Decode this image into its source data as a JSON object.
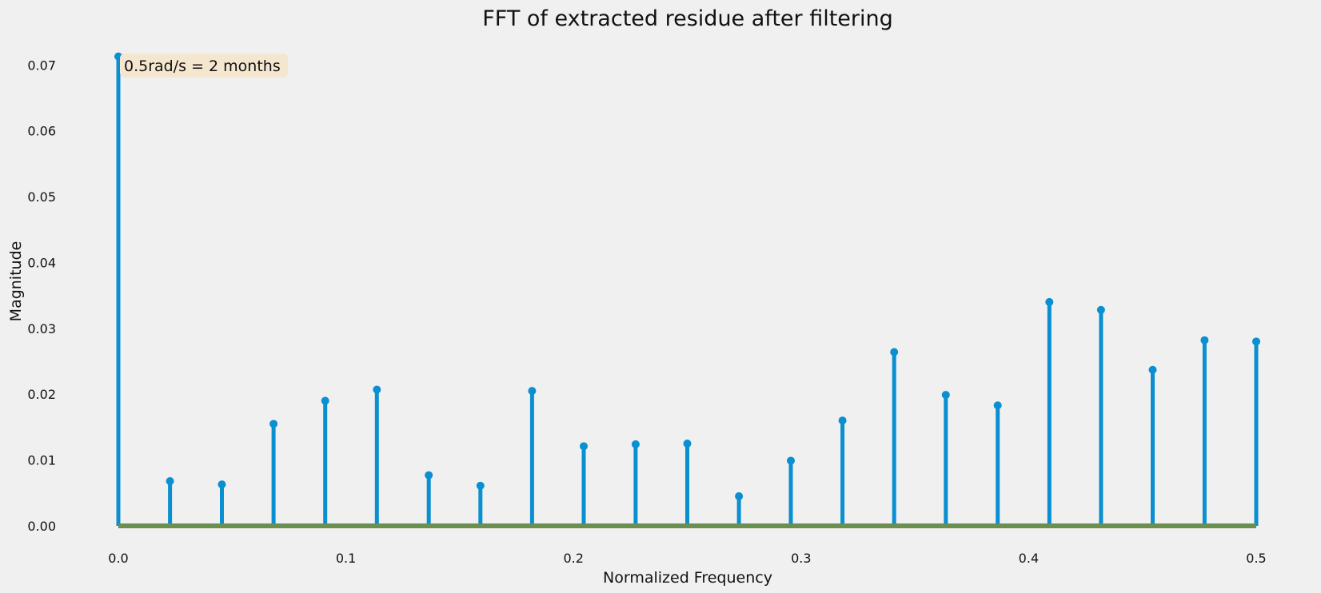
{
  "chart_data": {
    "type": "stem",
    "title": "FFT of extracted residue after filtering",
    "xlabel": "Normalized Frequency",
    "ylabel": "Magnitude",
    "xlim": [
      0.0,
      0.5
    ],
    "ylim": [
      0.0,
      0.0715
    ],
    "x_ticks": [
      "0.0",
      "0.1",
      "0.2",
      "0.3",
      "0.4",
      "0.5"
    ],
    "y_ticks": [
      "0.00",
      "0.01",
      "0.02",
      "0.03",
      "0.04",
      "0.05",
      "0.06",
      "0.07"
    ],
    "grid": false,
    "annotation": "0.5rad/s = 2 months",
    "colors": {
      "stem": "#0a8fd0",
      "baseline": "#6b8f4e",
      "annotation_box": "#f5e6cf"
    },
    "x": [
      0.0,
      0.0227,
      0.0455,
      0.0682,
      0.0909,
      0.1136,
      0.1364,
      0.1591,
      0.1818,
      0.2045,
      0.2273,
      0.25,
      0.2727,
      0.2955,
      0.3182,
      0.3409,
      0.3636,
      0.3864,
      0.4091,
      0.4318,
      0.4545,
      0.4773,
      0.5
    ],
    "values": [
      0.0713,
      0.0068,
      0.0063,
      0.0155,
      0.019,
      0.0207,
      0.0077,
      0.0061,
      0.0205,
      0.0121,
      0.0124,
      0.0125,
      0.0045,
      0.0099,
      0.016,
      0.0264,
      0.0199,
      0.0183,
      0.034,
      0.0328,
      0.0237,
      0.0282,
      0.028
    ]
  }
}
